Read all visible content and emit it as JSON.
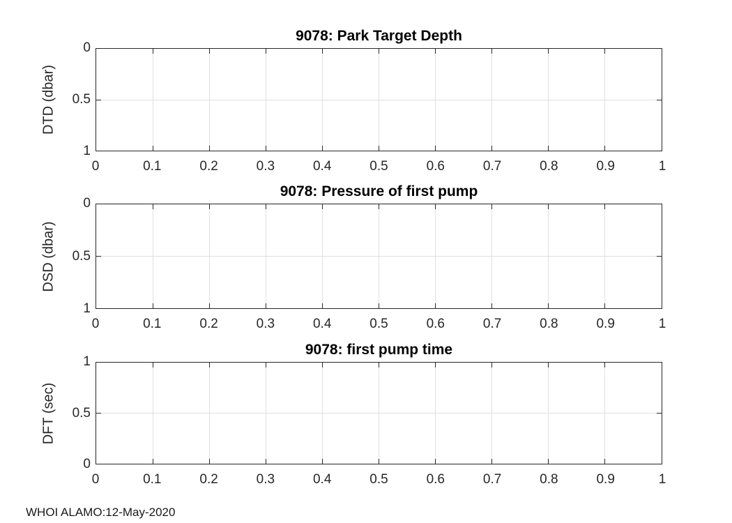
{
  "figure": {
    "background": "#ffffff",
    "footer": "WHOI ALAMO:12-May-2020",
    "colors": {
      "axis": "#262626",
      "grid": "#e0e0e0",
      "title": "#000000",
      "tick_label": "#262626",
      "background": "#ffffff"
    }
  },
  "chart_data": [
    {
      "type": "line",
      "title": "9078: Park Target Depth",
      "xlabel": "",
      "ylabel": "DTD (dbar)",
      "xlim": [
        0,
        1
      ],
      "ylim": [
        0,
        1
      ],
      "y_direction": "reverse",
      "grid": true,
      "legend": "none",
      "xticks": [
        0,
        0.1,
        0.2,
        0.3,
        0.4,
        0.5,
        0.6,
        0.7,
        0.8,
        0.9,
        1
      ],
      "yticks": [
        0,
        0.5,
        1
      ],
      "xtick_labels": [
        "0",
        "0.1",
        "0.2",
        "0.3",
        "0.4",
        "0.5",
        "0.6",
        "0.7",
        "0.8",
        "0.9",
        "1"
      ],
      "ytick_labels_top_to_bottom": [
        "0",
        "0.5",
        "1"
      ],
      "series": []
    },
    {
      "type": "line",
      "title": "9078: Pressure of first pump",
      "xlabel": "",
      "ylabel": "DSD (dbar)",
      "xlim": [
        0,
        1
      ],
      "ylim": [
        0,
        1
      ],
      "y_direction": "reverse",
      "grid": true,
      "legend": "none",
      "xticks": [
        0,
        0.1,
        0.2,
        0.3,
        0.4,
        0.5,
        0.6,
        0.7,
        0.8,
        0.9,
        1
      ],
      "yticks": [
        0,
        0.5,
        1
      ],
      "xtick_labels": [
        "0",
        "0.1",
        "0.2",
        "0.3",
        "0.4",
        "0.5",
        "0.6",
        "0.7",
        "0.8",
        "0.9",
        "1"
      ],
      "ytick_labels_top_to_bottom": [
        "0",
        "0.5",
        "1"
      ],
      "series": []
    },
    {
      "type": "line",
      "title": "9078: first pump time",
      "xlabel": "",
      "ylabel": "DFT (sec)",
      "xlim": [
        0,
        1
      ],
      "ylim": [
        0,
        1
      ],
      "y_direction": "normal",
      "grid": true,
      "legend": "none",
      "xticks": [
        0,
        0.1,
        0.2,
        0.3,
        0.4,
        0.5,
        0.6,
        0.7,
        0.8,
        0.9,
        1
      ],
      "yticks": [
        0,
        0.5,
        1
      ],
      "xtick_labels": [
        "0",
        "0.1",
        "0.2",
        "0.3",
        "0.4",
        "0.5",
        "0.6",
        "0.7",
        "0.8",
        "0.9",
        "1"
      ],
      "ytick_labels_top_to_bottom": [
        "1",
        "0.5",
        "0"
      ],
      "series": []
    }
  ]
}
